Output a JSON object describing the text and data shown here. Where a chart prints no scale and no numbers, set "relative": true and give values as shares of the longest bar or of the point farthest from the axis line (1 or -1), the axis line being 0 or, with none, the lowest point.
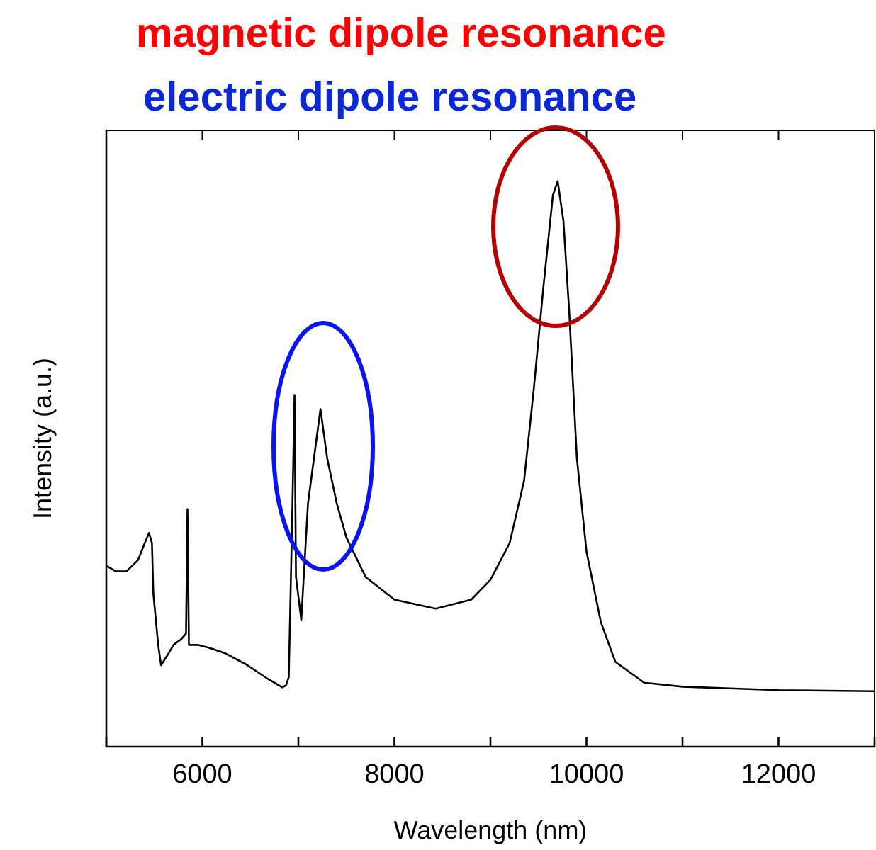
{
  "chart_data": {
    "type": "line",
    "title": "magnetic dipole resonance",
    "subtitle": "electric dipole resonance",
    "xlabel": "Wavelength (nm)",
    "ylabel": "Intensity (a.u.)",
    "relative": true,
    "xlim": [
      5000,
      13000
    ],
    "xticks": [
      {
        "value": 5000,
        "label": null
      },
      6000,
      {
        "value": 7000,
        "label": null
      },
      8000,
      {
        "value": 9000,
        "label": null
      },
      10000,
      {
        "value": 11000,
        "label": null
      },
      12000,
      {
        "value": 13000,
        "label": null
      }
    ],
    "series": [
      {
        "color": "#000000",
        "x": [
          5000,
          5100,
          5210,
          5330,
          5400,
          5445,
          5475,
          5490,
          5540,
          5570,
          5630,
          5700,
          5780,
          5830,
          5845,
          5860,
          5950,
          6065,
          6240,
          6460,
          6680,
          6830,
          6870,
          6900,
          6935,
          6960,
          6975,
          7030,
          7100,
          7230,
          7300,
          7400,
          7500,
          7700,
          8000,
          8430,
          8800,
          9000,
          9200,
          9350,
          9450,
          9550,
          9650,
          9700,
          9760,
          9820,
          9900,
          10000,
          10150,
          10300,
          10600,
          11000,
          12000,
          13000
        ],
        "values": [
          0.32,
          0.31,
          0.31,
          0.33,
          0.36,
          0.378,
          0.36,
          0.27,
          0.18,
          0.144,
          0.16,
          0.18,
          0.19,
          0.2,
          0.42,
          0.18,
          0.18,
          0.175,
          0.165,
          0.145,
          0.12,
          0.105,
          0.108,
          0.123,
          0.4,
          0.622,
          0.3,
          0.224,
          0.43,
          0.597,
          0.51,
          0.43,
          0.37,
          0.3,
          0.26,
          0.244,
          0.26,
          0.295,
          0.36,
          0.47,
          0.63,
          0.81,
          0.975,
          1.0,
          0.93,
          0.77,
          0.51,
          0.345,
          0.22,
          0.15,
          0.113,
          0.106,
          0.1,
          0.098
        ]
      }
    ]
  }
}
